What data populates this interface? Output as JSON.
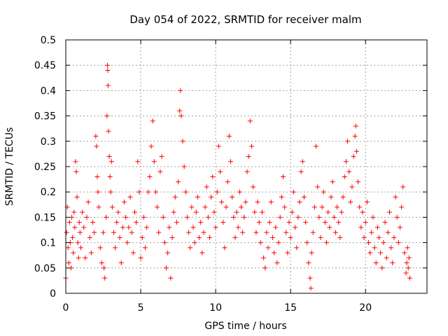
{
  "chart_data": {
    "type": "scatter",
    "title": "Day 054 of 2022, SRMTID for receiver malm",
    "xlabel": "GPS time / hours",
    "ylabel": "SRMTID / TECUs",
    "xlim": [
      0,
      24.1
    ],
    "ylim": [
      0,
      0.5
    ],
    "xticks": [
      0,
      5,
      10,
      15,
      20
    ],
    "xtick_labels": [
      "0",
      "5",
      "10",
      "15",
      "20"
    ],
    "yticks": [
      0,
      0.05,
      0.1,
      0.15,
      0.2,
      0.25,
      0.3,
      0.35,
      0.4,
      0.45,
      0.5
    ],
    "ytick_labels": [
      "0",
      "0.05",
      "0.1",
      "0.15",
      "0.2",
      "0.25",
      "0.3",
      "0.35",
      "0.4",
      "0.45",
      "0.5"
    ],
    "grid": true,
    "marker": "+",
    "marker_color": "#ff0000",
    "series": [
      {
        "name": "SRMTID",
        "points": [
          [
            0.0,
            0.03
          ],
          [
            0.05,
            0.12
          ],
          [
            0.1,
            0.17
          ],
          [
            0.15,
            0.09
          ],
          [
            0.2,
            0.06
          ],
          [
            0.25,
            0.14
          ],
          [
            0.3,
            0.1
          ],
          [
            0.35,
            0.05
          ],
          [
            0.4,
            0.15
          ],
          [
            0.45,
            0.11
          ],
          [
            0.5,
            0.08
          ],
          [
            0.55,
            0.16
          ],
          [
            0.6,
            0.13
          ],
          [
            0.65,
            0.26
          ],
          [
            0.7,
            0.24
          ],
          [
            0.75,
            0.19
          ],
          [
            0.8,
            0.1
          ],
          [
            0.85,
            0.07
          ],
          [
            0.9,
            0.14
          ],
          [
            0.95,
            0.12
          ],
          [
            1.0,
            0.09
          ],
          [
            1.1,
            0.16
          ],
          [
            1.2,
            0.13
          ],
          [
            1.3,
            0.07
          ],
          [
            1.4,
            0.15
          ],
          [
            1.5,
            0.18
          ],
          [
            1.6,
            0.11
          ],
          [
            1.7,
            0.08
          ],
          [
            1.8,
            0.14
          ],
          [
            1.9,
            0.12
          ],
          [
            2.0,
            0.31
          ],
          [
            2.05,
            0.29
          ],
          [
            2.1,
            0.23
          ],
          [
            2.15,
            0.2
          ],
          [
            2.2,
            0.17
          ],
          [
            2.3,
            0.09
          ],
          [
            2.4,
            0.06
          ],
          [
            2.5,
            0.12
          ],
          [
            2.55,
            0.05
          ],
          [
            2.6,
            0.03
          ],
          [
            2.7,
            0.15
          ],
          [
            2.75,
            0.35
          ],
          [
            2.78,
            0.45
          ],
          [
            2.8,
            0.44
          ],
          [
            2.82,
            0.41
          ],
          [
            2.85,
            0.32
          ],
          [
            2.9,
            0.27
          ],
          [
            2.95,
            0.23
          ],
          [
            3.0,
            0.2
          ],
          [
            3.05,
            0.26
          ],
          [
            3.1,
            0.17
          ],
          [
            3.2,
            0.12
          ],
          [
            3.3,
            0.09
          ],
          [
            3.4,
            0.14
          ],
          [
            3.5,
            0.16
          ],
          [
            3.6,
            0.11
          ],
          [
            3.7,
            0.06
          ],
          [
            3.8,
            0.13
          ],
          [
            3.9,
            0.18
          ],
          [
            4.0,
            0.15
          ],
          [
            4.1,
            0.1
          ],
          [
            4.2,
            0.13
          ],
          [
            4.3,
            0.19
          ],
          [
            4.4,
            0.12
          ],
          [
            4.5,
            0.08
          ],
          [
            4.6,
            0.16
          ],
          [
            4.7,
            0.14
          ],
          [
            4.8,
            0.26
          ],
          [
            4.9,
            0.2
          ],
          [
            5.0,
            0.07
          ],
          [
            5.1,
            0.11
          ],
          [
            5.2,
            0.15
          ],
          [
            5.3,
            0.09
          ],
          [
            5.4,
            0.13
          ],
          [
            5.5,
            0.2
          ],
          [
            5.6,
            0.23
          ],
          [
            5.7,
            0.29
          ],
          [
            5.8,
            0.34
          ],
          [
            5.9,
            0.26
          ],
          [
            6.0,
            0.2
          ],
          [
            6.1,
            0.17
          ],
          [
            6.2,
            0.12
          ],
          [
            6.3,
            0.24
          ],
          [
            6.4,
            0.27
          ],
          [
            6.5,
            0.15
          ],
          [
            6.6,
            0.1
          ],
          [
            6.7,
            0.05
          ],
          [
            6.8,
            0.08
          ],
          [
            6.9,
            0.13
          ],
          [
            7.0,
            0.03
          ],
          [
            7.1,
            0.11
          ],
          [
            7.2,
            0.16
          ],
          [
            7.3,
            0.19
          ],
          [
            7.4,
            0.14
          ],
          [
            7.5,
            0.22
          ],
          [
            7.6,
            0.36
          ],
          [
            7.65,
            0.4
          ],
          [
            7.7,
            0.35
          ],
          [
            7.8,
            0.3
          ],
          [
            7.9,
            0.25
          ],
          [
            8.0,
            0.2
          ],
          [
            8.1,
            0.15
          ],
          [
            8.2,
            0.12
          ],
          [
            8.3,
            0.09
          ],
          [
            8.4,
            0.17
          ],
          [
            8.5,
            0.13
          ],
          [
            8.6,
            0.1
          ],
          [
            8.7,
            0.16
          ],
          [
            8.8,
            0.19
          ],
          [
            8.9,
            0.11
          ],
          [
            9.0,
            0.14
          ],
          [
            9.1,
            0.08
          ],
          [
            9.2,
            0.12
          ],
          [
            9.3,
            0.17
          ],
          [
            9.4,
            0.21
          ],
          [
            9.5,
            0.15
          ],
          [
            9.6,
            0.11
          ],
          [
            9.7,
            0.19
          ],
          [
            9.8,
            0.23
          ],
          [
            9.9,
            0.16
          ],
          [
            10.0,
            0.13
          ],
          [
            10.1,
            0.2
          ],
          [
            10.2,
            0.29
          ],
          [
            10.3,
            0.24
          ],
          [
            10.4,
            0.18
          ],
          [
            10.5,
            0.14
          ],
          [
            10.6,
            0.09
          ],
          [
            10.7,
            0.17
          ],
          [
            10.8,
            0.22
          ],
          [
            10.9,
            0.31
          ],
          [
            11.0,
            0.26
          ],
          [
            11.1,
            0.19
          ],
          [
            11.2,
            0.15
          ],
          [
            11.3,
            0.11
          ],
          [
            11.4,
            0.16
          ],
          [
            11.5,
            0.13
          ],
          [
            11.6,
            0.2
          ],
          [
            11.7,
            0.17
          ],
          [
            11.8,
            0.12
          ],
          [
            11.9,
            0.15
          ],
          [
            12.0,
            0.18
          ],
          [
            12.1,
            0.24
          ],
          [
            12.2,
            0.27
          ],
          [
            12.3,
            0.34
          ],
          [
            12.4,
            0.29
          ],
          [
            12.5,
            0.21
          ],
          [
            12.6,
            0.16
          ],
          [
            12.7,
            0.12
          ],
          [
            12.8,
            0.18
          ],
          [
            12.9,
            0.14
          ],
          [
            13.0,
            0.1
          ],
          [
            13.1,
            0.16
          ],
          [
            13.2,
            0.07
          ],
          [
            13.3,
            0.05
          ],
          [
            13.4,
            0.12
          ],
          [
            13.5,
            0.09
          ],
          [
            13.6,
            0.14
          ],
          [
            13.7,
            0.18
          ],
          [
            13.8,
            0.11
          ],
          [
            13.9,
            0.08
          ],
          [
            14.0,
            0.13
          ],
          [
            14.1,
            0.06
          ],
          [
            14.2,
            0.1
          ],
          [
            14.3,
            0.15
          ],
          [
            14.4,
            0.19
          ],
          [
            14.5,
            0.23
          ],
          [
            14.6,
            0.17
          ],
          [
            14.7,
            0.12
          ],
          [
            14.8,
            0.08
          ],
          [
            14.9,
            0.14
          ],
          [
            15.0,
            0.11
          ],
          [
            15.1,
            0.16
          ],
          [
            15.2,
            0.2
          ],
          [
            15.3,
            0.13
          ],
          [
            15.4,
            0.09
          ],
          [
            15.5,
            0.15
          ],
          [
            15.6,
            0.18
          ],
          [
            15.7,
            0.24
          ],
          [
            15.8,
            0.26
          ],
          [
            15.9,
            0.19
          ],
          [
            16.0,
            0.14
          ],
          [
            16.1,
            0.1
          ],
          [
            16.2,
            0.06
          ],
          [
            16.3,
            0.03
          ],
          [
            16.35,
            0.01
          ],
          [
            16.4,
            0.08
          ],
          [
            16.5,
            0.12
          ],
          [
            16.6,
            0.17
          ],
          [
            16.7,
            0.29
          ],
          [
            16.8,
            0.21
          ],
          [
            16.9,
            0.15
          ],
          [
            17.0,
            0.11
          ],
          [
            17.1,
            0.17
          ],
          [
            17.2,
            0.2
          ],
          [
            17.3,
            0.14
          ],
          [
            17.4,
            0.1
          ],
          [
            17.5,
            0.16
          ],
          [
            17.6,
            0.13
          ],
          [
            17.7,
            0.19
          ],
          [
            17.8,
            0.22
          ],
          [
            17.9,
            0.15
          ],
          [
            18.0,
            0.12
          ],
          [
            18.1,
            0.17
          ],
          [
            18.2,
            0.14
          ],
          [
            18.3,
            0.11
          ],
          [
            18.4,
            0.16
          ],
          [
            18.5,
            0.19
          ],
          [
            18.6,
            0.23
          ],
          [
            18.7,
            0.26
          ],
          [
            18.8,
            0.3
          ],
          [
            18.9,
            0.24
          ],
          [
            19.0,
            0.18
          ],
          [
            19.1,
            0.21
          ],
          [
            19.2,
            0.27
          ],
          [
            19.3,
            0.31
          ],
          [
            19.35,
            0.33
          ],
          [
            19.4,
            0.28
          ],
          [
            19.5,
            0.22
          ],
          [
            19.6,
            0.17
          ],
          [
            19.7,
            0.13
          ],
          [
            19.8,
            0.16
          ],
          [
            19.9,
            0.11
          ],
          [
            20.0,
            0.14
          ],
          [
            20.1,
            0.18
          ],
          [
            20.2,
            0.1
          ],
          [
            20.3,
            0.08
          ],
          [
            20.4,
            0.12
          ],
          [
            20.5,
            0.15
          ],
          [
            20.6,
            0.09
          ],
          [
            20.7,
            0.06
          ],
          [
            20.8,
            0.13
          ],
          [
            20.9,
            0.11
          ],
          [
            21.0,
            0.08
          ],
          [
            21.1,
            0.05
          ],
          [
            21.2,
            0.1
          ],
          [
            21.3,
            0.14
          ],
          [
            21.4,
            0.07
          ],
          [
            21.5,
            0.12
          ],
          [
            21.6,
            0.16
          ],
          [
            21.7,
            0.09
          ],
          [
            21.8,
            0.06
          ],
          [
            21.9,
            0.11
          ],
          [
            22.0,
            0.19
          ],
          [
            22.1,
            0.15
          ],
          [
            22.2,
            0.1
          ],
          [
            22.3,
            0.13
          ],
          [
            22.4,
            0.17
          ],
          [
            22.5,
            0.21
          ],
          [
            22.6,
            0.08
          ],
          [
            22.7,
            0.04
          ],
          [
            22.75,
            0.06
          ],
          [
            22.8,
            0.09
          ],
          [
            22.85,
            0.05
          ],
          [
            22.9,
            0.07
          ],
          [
            22.95,
            0.03
          ]
        ]
      }
    ]
  }
}
